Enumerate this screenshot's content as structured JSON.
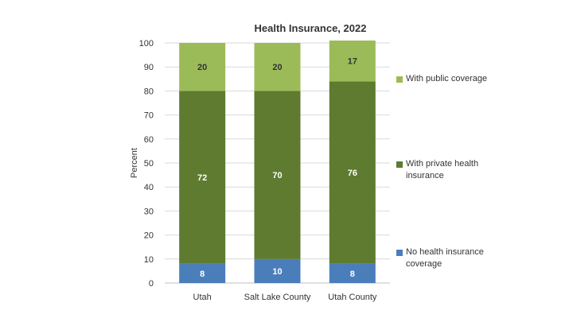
{
  "chart_data": {
    "type": "bar",
    "stacked": true,
    "title": "Health Insurance, 2022",
    "xlabel": "",
    "ylabel": "Percent",
    "ylim": [
      0,
      100
    ],
    "yticks": [
      0,
      10,
      20,
      30,
      40,
      50,
      60,
      70,
      80,
      90,
      100
    ],
    "grid": true,
    "legend": "right",
    "categories": [
      "Utah",
      "Salt Lake County",
      "Utah County"
    ],
    "series": [
      {
        "name": "No health insurance coverage",
        "values": [
          8,
          10,
          8
        ],
        "color": "#4a7ebb",
        "label_color": "#ffffff"
      },
      {
        "name": "With private health insurance",
        "values": [
          72,
          70,
          76
        ],
        "color": "#5e7b2f",
        "label_color": "#ffffff"
      },
      {
        "name": "With public coverage",
        "values": [
          20,
          20,
          17
        ],
        "color": "#9bbb59",
        "label_color": "#333333"
      }
    ]
  }
}
